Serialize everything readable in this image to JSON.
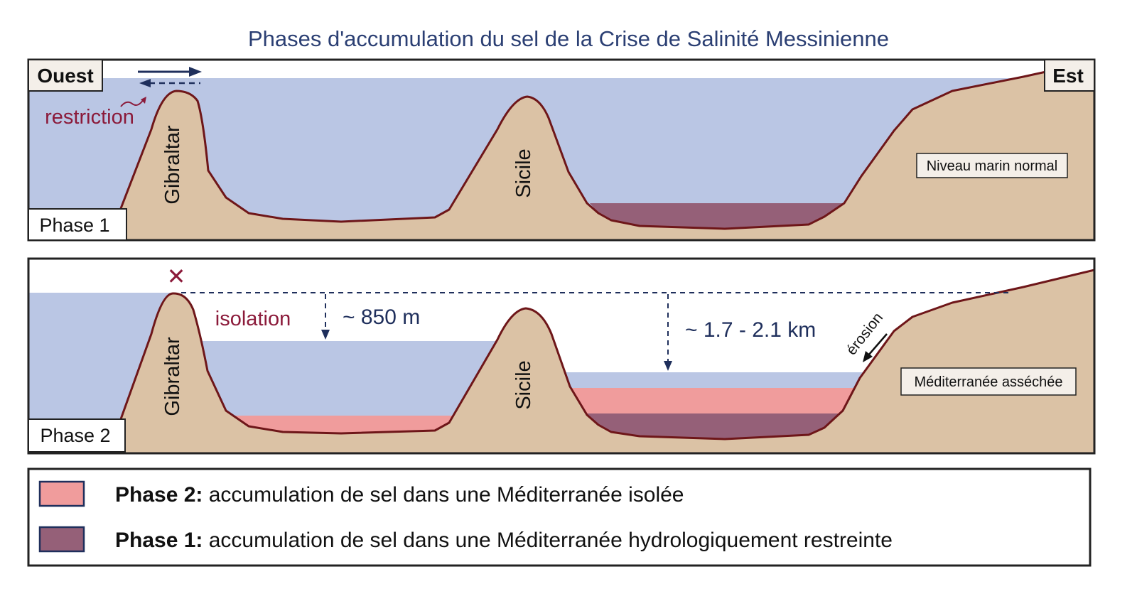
{
  "title": "Phases d'accumulation du sel de la Crise de Salinité Messinienne",
  "direction": {
    "west": "Ouest",
    "east": "Est"
  },
  "panel1": {
    "phase_label": "Phase 1",
    "restriction_label": "restriction",
    "gibraltar_label": "Gibraltar",
    "sicily_label": "Sicile",
    "box_label": "Niveau marin normal"
  },
  "panel2": {
    "phase_label": "Phase 2",
    "isolation_label": "isolation",
    "gibraltar_label": "Gibraltar",
    "sicily_label": "Sicile",
    "west_drop_label": "~ 850 m",
    "east_drop_label": "~ 1.7 - 2.1 km",
    "erosion_label": "érosion",
    "box_label": "Méditerranée asséchée",
    "blocked_symbol": "✕"
  },
  "legend": [
    {
      "phase": "Phase 2:",
      "text": " accumulation de sel dans une Méditerranée isolée",
      "color": "#f09c9c"
    },
    {
      "phase": "Phase 1:",
      "text": " accumulation de sel dans une Méditerranée hydrologiquement restreinte",
      "color": "#956078"
    }
  ],
  "colors": {
    "seawater": "#bac6e4",
    "land": "#dbc2a5",
    "land_outline": "#6e1619",
    "salt_phase1": "#956078",
    "salt_phase2": "#f09c9c",
    "title_text": "#2b3f73",
    "red_text": "#8b1a3a",
    "arrow_blue": "#1f2f5c"
  },
  "icons": {
    "flow_arrows": "bidirectional-flow-arrows-icon",
    "restriction_squiggle": "squiggle-arrow-icon",
    "erosion_arrow": "erosion-arrow-icon",
    "drop_arrow": "dashed-down-arrow-icon"
  }
}
